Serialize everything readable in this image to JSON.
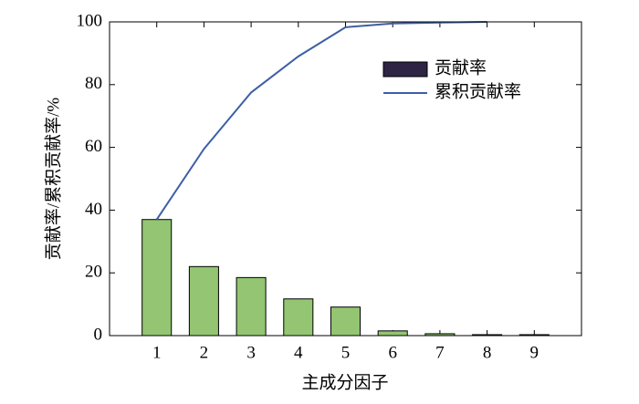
{
  "chart_data": {
    "type": "bar-line",
    "x_label": "主成分因子",
    "y_label": "贡献率/累积贡献率/%",
    "x": [
      1,
      2,
      3,
      4,
      5,
      6,
      7,
      8,
      9
    ],
    "xlim": [
      0,
      10
    ],
    "xticks": [
      1,
      2,
      3,
      4,
      5,
      6,
      7,
      8,
      9
    ],
    "ylim": [
      0,
      100
    ],
    "yticks": [
      0,
      20,
      40,
      60,
      80,
      100
    ],
    "series": [
      {
        "name": "贡献率",
        "type": "bar",
        "color": "#93c572",
        "legend_color": "#2e2544",
        "values": [
          37,
          22,
          18.5,
          11.7,
          9.1,
          1.5,
          0.6,
          0.3,
          0.3
        ]
      },
      {
        "name": "累积贡献率",
        "type": "line",
        "color": "#3d5fa6",
        "values": [
          37,
          59.5,
          77.5,
          89,
          98.3,
          99.5,
          99.8,
          100,
          null
        ]
      }
    ],
    "legend": "upper right"
  }
}
